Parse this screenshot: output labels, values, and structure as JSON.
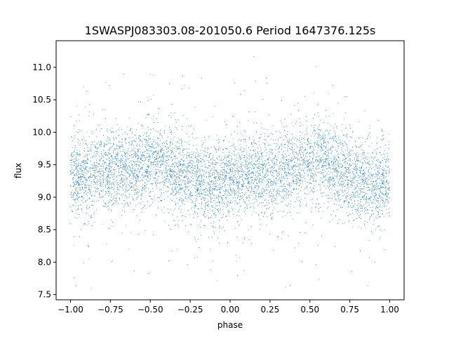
{
  "chart_data": {
    "type": "scatter",
    "title": "1SWASPJ083303.08-201050.6 Period 1647376.125s",
    "xlabel": "phase",
    "ylabel": "flux",
    "xlim": [
      -1.09,
      1.09
    ],
    "ylim": [
      7.42,
      11.41
    ],
    "x_ticks": [
      -1.0,
      -0.75,
      -0.5,
      -0.25,
      0.0,
      0.25,
      0.5,
      0.75,
      1.0
    ],
    "x_tick_labels": [
      "−1.00",
      "−0.75",
      "−0.50",
      "−0.25",
      "0.00",
      "0.25",
      "0.50",
      "0.75",
      "1.00"
    ],
    "y_ticks": [
      7.5,
      8.0,
      8.5,
      9.0,
      9.5,
      10.0,
      10.5,
      11.0
    ],
    "y_tick_labels": [
      "7.5",
      "8.0",
      "8.5",
      "9.0",
      "9.5",
      "10.0",
      "10.5",
      "11.0"
    ],
    "series": [
      {
        "color": "#1f77b4",
        "marker_size": 1,
        "note_phase_range": [
          -1.0,
          1.0
        ],
        "mean_flux_profile": {
          "phase": [
            -1.0,
            -0.9,
            -0.8,
            -0.7,
            -0.6,
            -0.5,
            -0.45,
            -0.4,
            -0.3,
            -0.2,
            -0.1,
            0.0,
            0.1,
            0.2,
            0.3,
            0.4,
            0.5,
            0.55,
            0.6,
            0.7,
            0.8,
            0.9,
            1.0
          ],
          "flux": [
            9.3,
            9.35,
            9.4,
            9.45,
            9.45,
            9.5,
            9.55,
            9.5,
            9.35,
            9.25,
            9.2,
            9.25,
            9.3,
            9.35,
            9.4,
            9.45,
            9.5,
            9.55,
            9.5,
            9.35,
            9.25,
            9.2,
            9.25
          ]
        },
        "scatter_sigma": 0.3,
        "min_flux": 7.6,
        "max_flux": 11.2
      }
    ]
  }
}
